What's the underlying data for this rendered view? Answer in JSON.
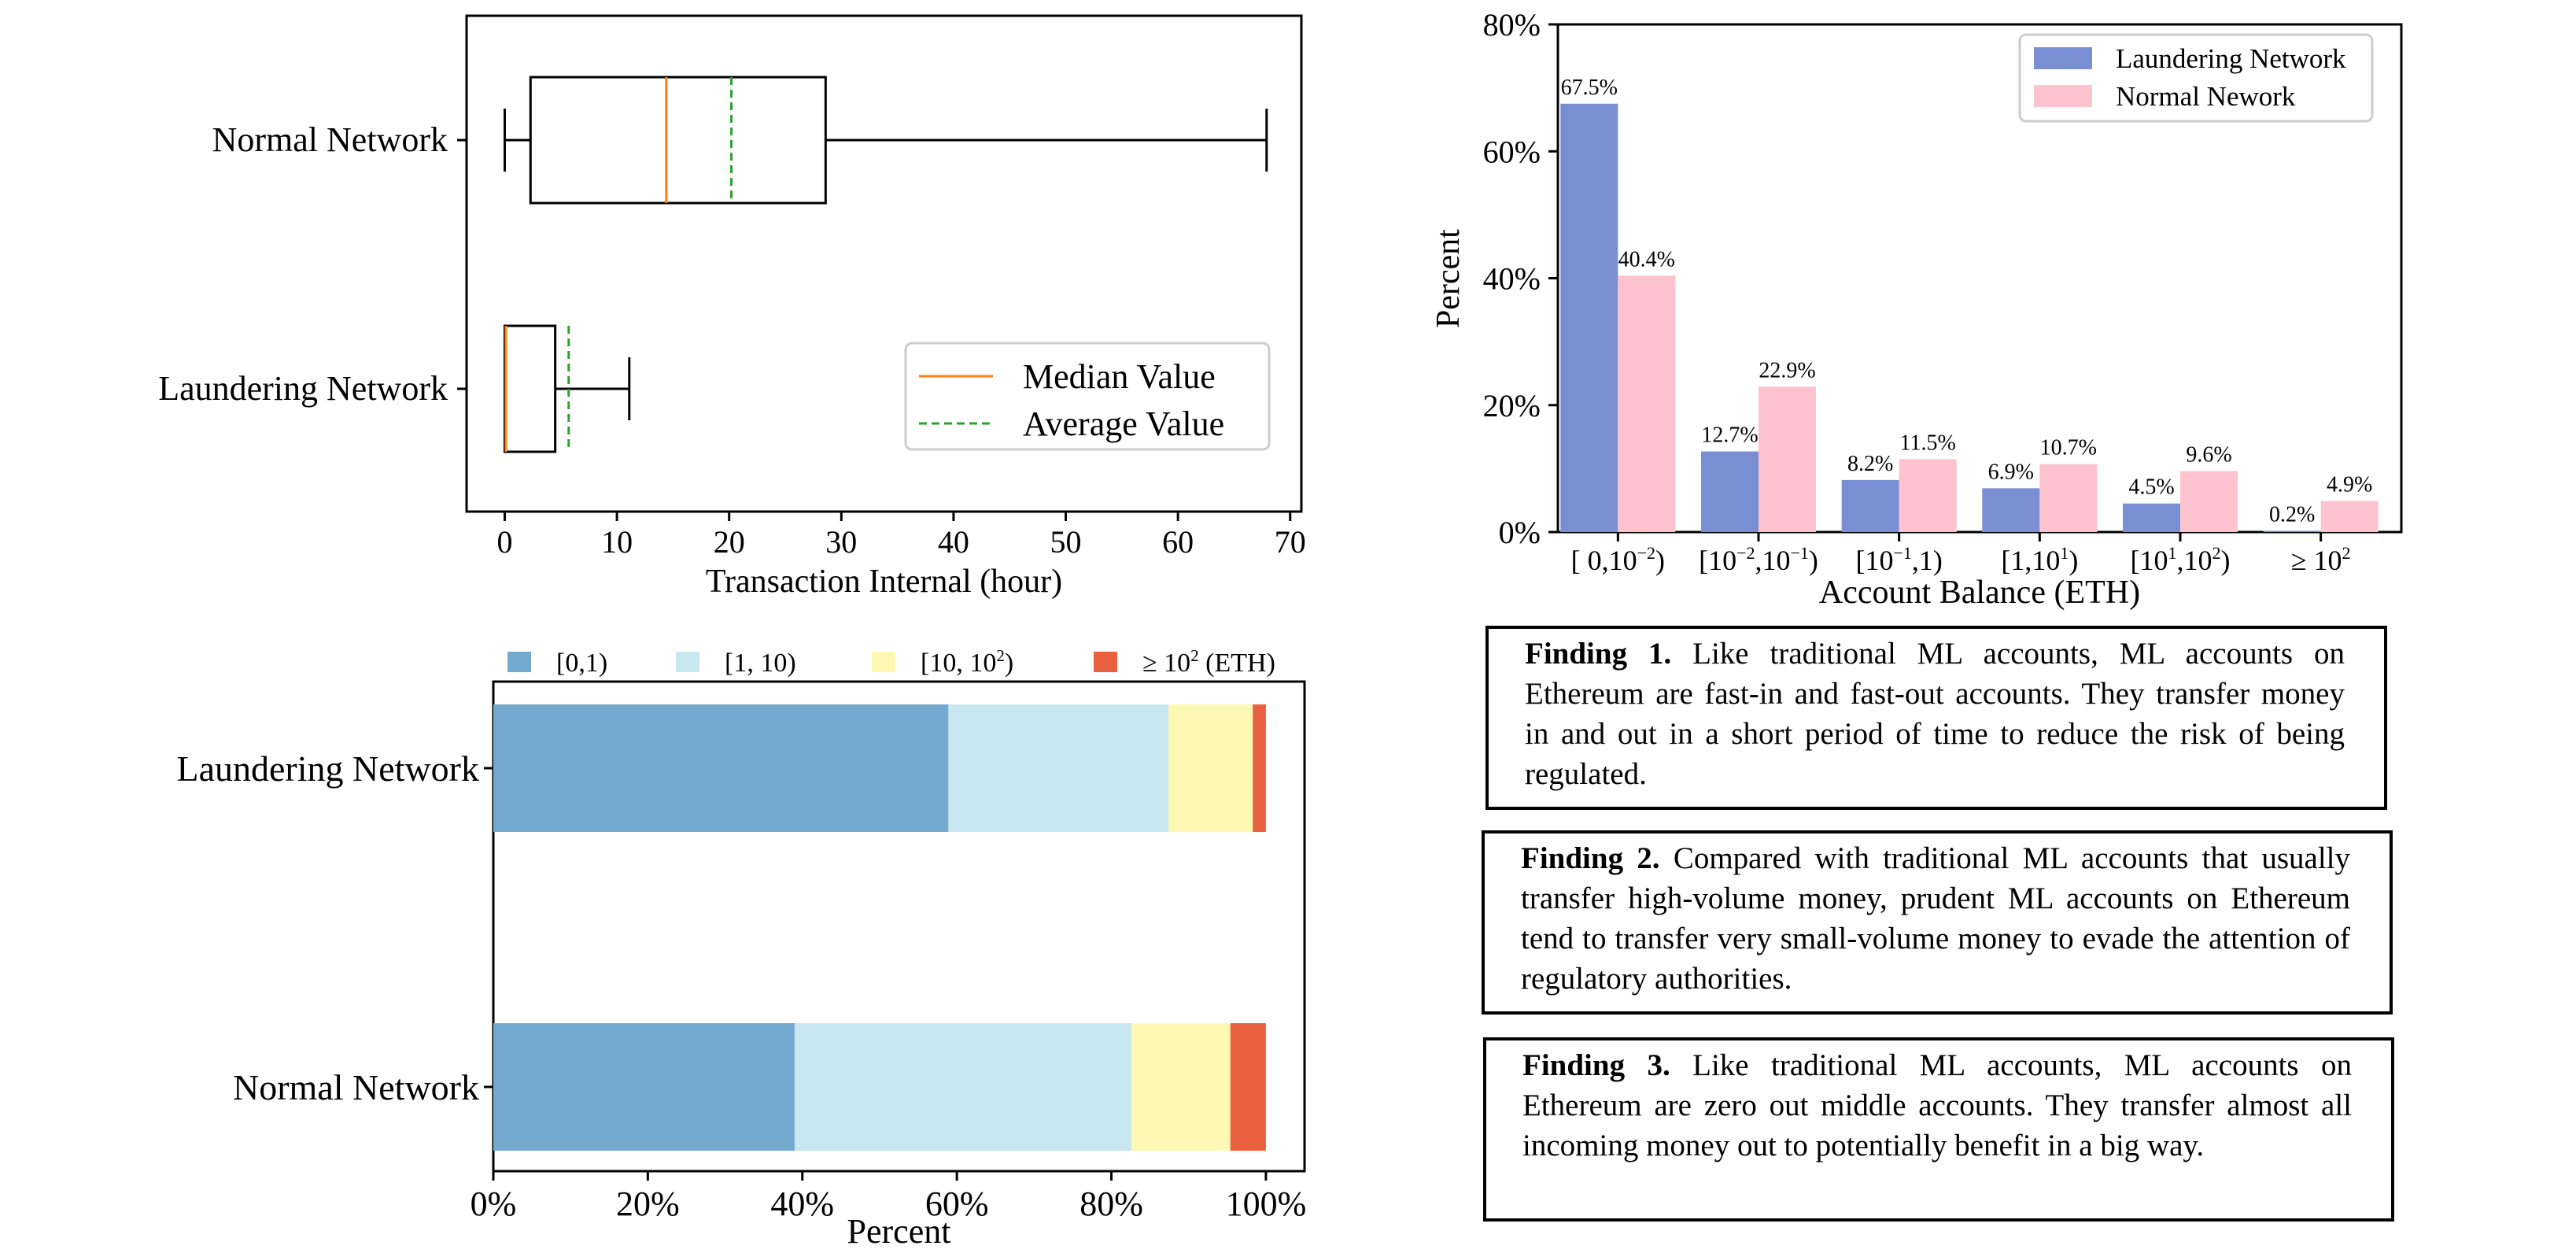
{
  "chart_data": [
    {
      "type": "boxplot",
      "xlabel": "Transaction Internal (hour)",
      "xlim": [
        -3.4,
        71
      ],
      "xticks": [
        0,
        10,
        20,
        30,
        40,
        50,
        60,
        70
      ],
      "categories": [
        "Normal Network",
        "Laundering Network"
      ],
      "boxes": [
        {
          "label": "Normal Network",
          "whisker_low": 0,
          "q1": 2.3,
          "median": 14.4,
          "mean": 20.2,
          "q3": 28.6,
          "whisker_high": 67.9
        },
        {
          "label": "Laundering Network",
          "whisker_low": 0,
          "q1": 0,
          "median": 0.1,
          "mean": 5.7,
          "q3": 4.5,
          "whisker_high": 11.1
        }
      ],
      "legend": [
        {
          "label": "Median Value",
          "color": "#ff7f0e",
          "style": "solid"
        },
        {
          "label": "Average Value",
          "color": "#2ca02c",
          "style": "dashed"
        }
      ],
      "legend_position": "lower-right"
    },
    {
      "type": "bar",
      "orientation": "horizontal",
      "stacked": true,
      "xlabel": "Percent",
      "xlim": [
        0,
        105
      ],
      "xticks": [
        "0%",
        "20%",
        "40%",
        "60%",
        "80%",
        "100%"
      ],
      "categories": [
        "Laundering Network",
        "Normal Network"
      ],
      "series": [
        {
          "name": "[0,1)",
          "color": "#73a9cf",
          "values": [
            58.9,
            39.0
          ]
        },
        {
          "name": "[1, 10)",
          "color": "#c9e7f1",
          "values": [
            28.5,
            43.6
          ]
        },
        {
          "name": "[10, 10²)",
          "color": "#fdf8b4",
          "values": [
            10.9,
            12.8
          ]
        },
        {
          "name": "≥ 10² (ETH)",
          "color": "#ea6140",
          "values": [
            1.7,
            4.6
          ]
        }
      ],
      "legend_position": "top"
    },
    {
      "type": "bar",
      "xlabel": "Account Balance (ETH)",
      "ylabel": "Percent",
      "ylim": [
        0,
        80
      ],
      "yticks": [
        "0%",
        "20%",
        "40%",
        "60%",
        "80%"
      ],
      "categories": [
        "[ 0,10⁻²)",
        "[10⁻²,10⁻¹)",
        "[10⁻¹,1)",
        "[1,10¹)",
        "[10¹,10²)",
        "≥ 10²"
      ],
      "series": [
        {
          "name": "Laundering Network",
          "color": "#7a8fd3",
          "values": [
            67.5,
            12.7,
            8.2,
            6.9,
            4.5,
            0.2
          ],
          "labels": [
            "67.5%",
            "12.7%",
            "8.2%",
            "6.9%",
            "4.5%",
            "0.2%"
          ]
        },
        {
          "name": "Normal Nework",
          "color": "#fec3ce",
          "values": [
            40.4,
            22.9,
            11.5,
            10.7,
            9.6,
            4.9
          ],
          "labels": [
            "40.4%",
            "22.9%",
            "11.5%",
            "10.7%",
            "9.6%",
            "4.9%"
          ]
        }
      ],
      "legend_position": "top-right"
    }
  ],
  "findings": [
    {
      "title": "Finding 1.",
      "text": "Like traditional ML accounts, ML accounts on Ethereum are fast-in and fast-out accounts. They transfer money in and out in a short period of time to reduce the risk of being regulated."
    },
    {
      "title": "Finding 2.",
      "text": "Compared with traditional ML accounts that usually transfer high-volume money, prudent ML accounts on Ethereum tend to transfer very small-volume money to evade the attention of regulatory authorities."
    },
    {
      "title": "Finding 3.",
      "text": "Like traditional ML accounts, ML accounts on Ethereum are zero out middle accounts. They transfer almost all incoming money out to potentially benefit in a big way."
    }
  ]
}
